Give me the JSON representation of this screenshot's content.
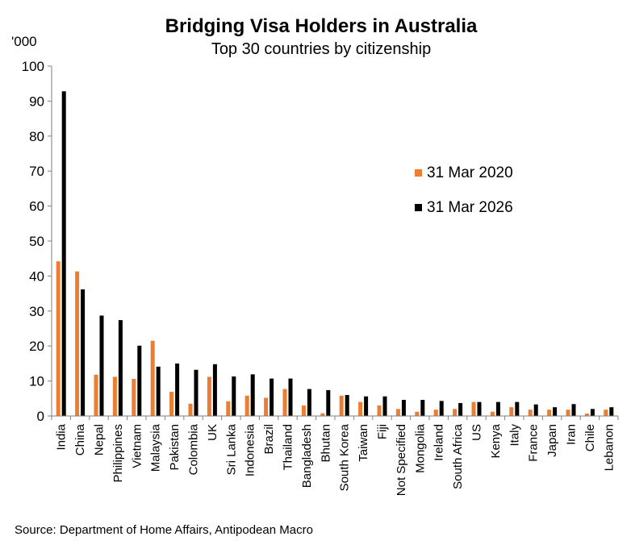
{
  "chart_data": {
    "type": "bar",
    "title": "Bridging Visa Holders in Australia",
    "subtitle": "Top 30 countries by citizenship",
    "ylabel": "'000",
    "ylim": [
      0,
      100
    ],
    "yticks": [
      0,
      10,
      20,
      30,
      40,
      50,
      60,
      70,
      80,
      90,
      100
    ],
    "grid": false,
    "legend_position": "right",
    "categories": [
      "India",
      "China",
      "Nepal",
      "Philippines",
      "Vietnam",
      "Malaysia",
      "Pakistan",
      "Colombia",
      "UK",
      "Sri Lanka",
      "Indonesia",
      "Brazil",
      "Thailand",
      "Bangladesh",
      "Bhutan",
      "South Korea",
      "Taiwan",
      "Fiji",
      "Not Specified",
      "Mongolia",
      "Ireland",
      "South Africa",
      "US",
      "Kenya",
      "Italy",
      "France",
      "Japan",
      "Iran",
      "Chile",
      "Lebanon"
    ],
    "series": [
      {
        "name": "31 Mar 2020",
        "color": "#ED7D31",
        "values": [
          44.2,
          41.3,
          11.8,
          11.2,
          10.6,
          21.5,
          6.9,
          3.5,
          11.2,
          4.2,
          5.8,
          5.2,
          7.7,
          3.0,
          0.8,
          5.8,
          4.0,
          3.0,
          2.0,
          1.2,
          1.8,
          2.0,
          4.0,
          1.2,
          2.5,
          1.8,
          1.8,
          1.8,
          0.7,
          1.8
        ]
      },
      {
        "name": "31 Mar 2026",
        "color": "#000000",
        "values": [
          92.8,
          36.2,
          28.7,
          27.4,
          20.1,
          14.1,
          15.0,
          13.2,
          14.8,
          11.3,
          11.9,
          10.7,
          10.7,
          7.7,
          7.4,
          6.0,
          5.6,
          5.6,
          4.6,
          4.6,
          4.3,
          3.7,
          4.0,
          4.0,
          4.0,
          3.3,
          2.5,
          3.4,
          2.0,
          2.5
        ]
      }
    ],
    "source": "Source: Department of Home Affairs, Antipodean Macro"
  }
}
